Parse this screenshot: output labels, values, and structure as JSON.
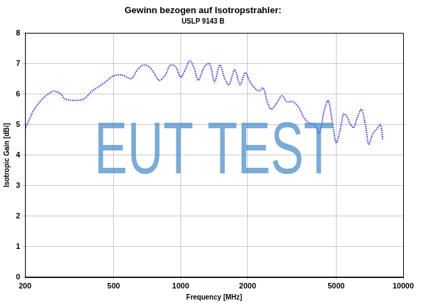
{
  "chart_data": {
    "type": "line",
    "title": "Gewinn bezogen auf Isotropstrahler:",
    "subtitle": "USLP 9143 B",
    "xlabel": "Frequency [MHz]",
    "ylabel": "Isotropic Gain [dBi]",
    "annotation": "EUT TEST",
    "log": "x",
    "grid": true,
    "xlim": [
      200,
      10000
    ],
    "ylim": [
      0,
      8
    ],
    "xticks": [
      200,
      500,
      1000,
      2000,
      5000,
      10000
    ],
    "yticks": [
      0,
      1,
      2,
      3,
      4,
      5,
      6,
      7,
      8
    ],
    "x": [
      200,
      210,
      220,
      240,
      260,
      270,
      290,
      300,
      320,
      350,
      370,
      400,
      430,
      460,
      500,
      550,
      600,
      640,
      680,
      720,
      750,
      800,
      850,
      900,
      950,
      1000,
      1050,
      1100,
      1150,
      1200,
      1280,
      1350,
      1420,
      1500,
      1580,
      1650,
      1750,
      1850,
      1950,
      2050,
      2150,
      2250,
      2350,
      2450,
      2550,
      2700,
      2850,
      3000,
      3200,
      3400,
      3600,
      3800,
      4000,
      4200,
      4400,
      4600,
      4800,
      5000,
      5200,
      5400,
      5600,
      5800,
      6000,
      6200,
      6500,
      6800,
      7000,
      7300,
      7600,
      7900,
      8100
    ],
    "values": [
      4.85,
      5.2,
      5.5,
      5.85,
      6.05,
      6.1,
      6.0,
      5.85,
      5.8,
      5.8,
      5.85,
      6.1,
      6.25,
      6.4,
      6.6,
      6.62,
      6.5,
      6.8,
      6.95,
      6.9,
      6.75,
      6.45,
      6.6,
      6.95,
      6.9,
      6.55,
      6.8,
      7.1,
      6.85,
      6.45,
      6.9,
      7.0,
      6.4,
      6.95,
      6.5,
      6.3,
      6.8,
      6.3,
      6.7,
      6.4,
      6.2,
      6.1,
      6.2,
      5.75,
      5.5,
      5.7,
      5.95,
      5.75,
      5.75,
      5.55,
      5.2,
      5.05,
      5.0,
      4.7,
      5.4,
      5.8,
      5.1,
      4.4,
      4.8,
      5.35,
      5.25,
      5.0,
      4.9,
      5.2,
      5.5,
      4.9,
      4.35,
      4.7,
      4.85,
      5.0,
      4.5
    ],
    "color": "#2a2ad0",
    "line_style": "dotted"
  }
}
